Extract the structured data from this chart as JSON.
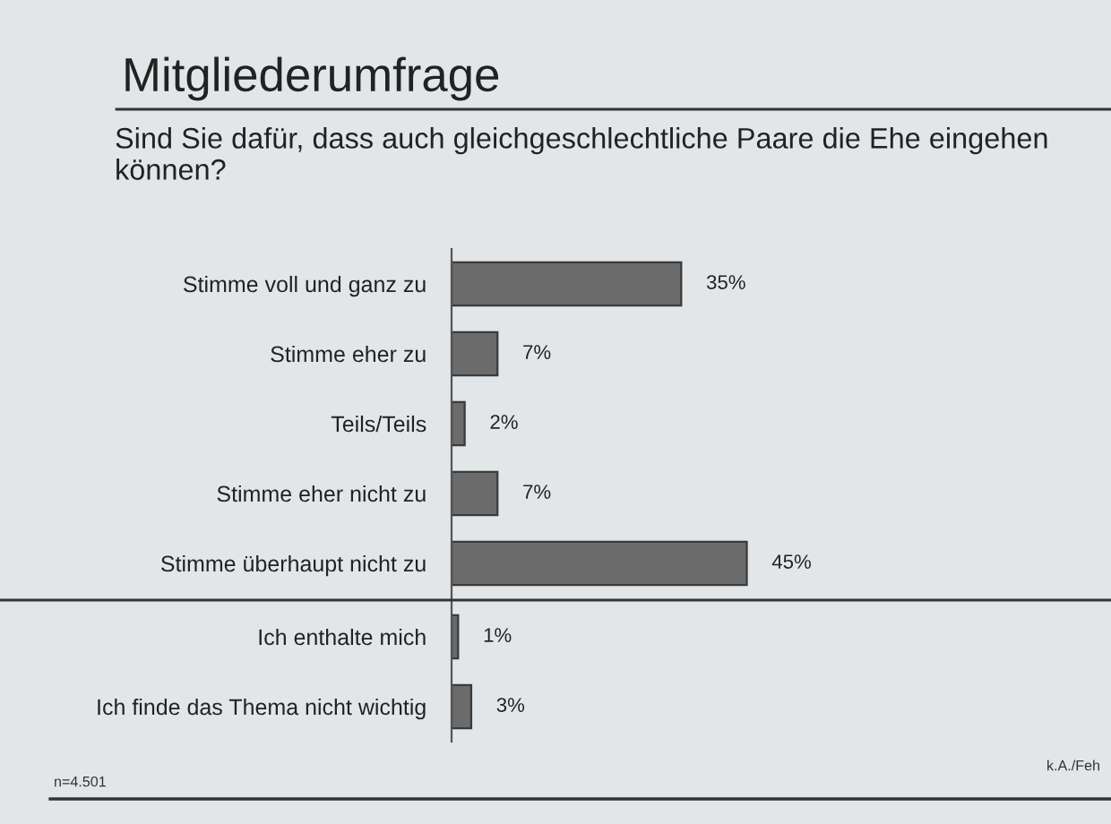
{
  "chart_data": [
    {
      "type": "bar",
      "orientation": "horizontal",
      "title": "Mitgliederumfrage",
      "subtitle": "Sind Sie dafür, dass auch gleichgeschlechtliche Paare die Ehe eingehen können?",
      "categories": [
        "Stimme voll und ganz zu",
        "Stimme eher zu",
        "Teils/Teils",
        "Stimme eher nicht zu",
        "Stimme überhaupt nicht zu"
      ],
      "values": [
        35,
        7,
        2,
        7,
        45
      ],
      "value_labels": [
        "35%",
        "7%",
        "2%",
        "7%",
        "45%"
      ],
      "color": "#6b6b6b",
      "tick_labels": "y"
    },
    {
      "type": "bar",
      "orientation": "horizontal",
      "categories": [
        "Ich enthalte mich",
        "Ich finde das Thema nicht wichtig"
      ],
      "values": [
        1,
        3
      ],
      "value_labels": [
        "1%",
        "3%"
      ],
      "color": "#6b6b6b",
      "tick_labels": "y",
      "annotations": [
        "n=4.501",
        "k.A./Feh"
      ]
    }
  ]
}
